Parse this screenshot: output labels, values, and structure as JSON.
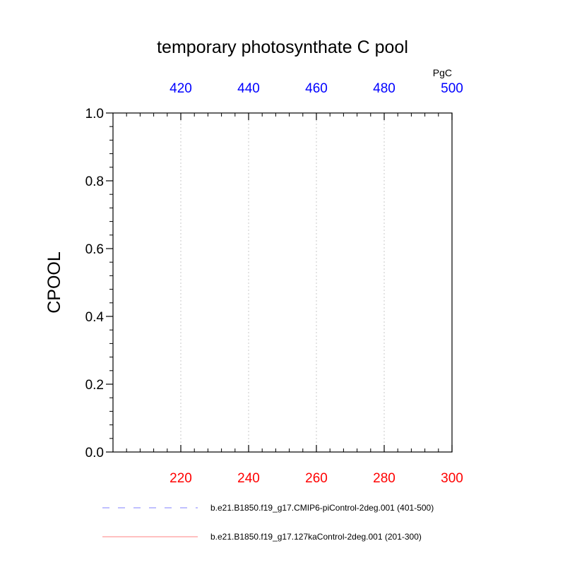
{
  "chart_data": {
    "type": "line",
    "title": "temporary photosynthate C pool",
    "ylabel": "CPOOL",
    "ylim": [
      0.0,
      1.0
    ],
    "y_ticks": [
      "0.0",
      "0.2",
      "0.4",
      "0.6",
      "0.8",
      "1.0"
    ],
    "y_minor_step": 0.04,
    "top_axis": {
      "unit": "PgC",
      "range": [
        400,
        500
      ],
      "ticks": [
        "420",
        "440",
        "460",
        "480",
        "500"
      ],
      "minor_step": 4,
      "color": "#0000ff"
    },
    "bottom_axis": {
      "range": [
        200,
        300
      ],
      "ticks": [
        "220",
        "240",
        "260",
        "280",
        "300"
      ],
      "minor_step": 4,
      "color": "#ff0000"
    },
    "grid": true,
    "grid_at": [
      220,
      240,
      260,
      280
    ],
    "legend_position": "bottom",
    "series": [
      {
        "name": "b.e21.B1850.f19_g17.CMIP6-piControl-2deg.001 (401-500)",
        "color": "#8080ff",
        "dash": "dashed",
        "axis": "top",
        "values": []
      },
      {
        "name": "b.e21.B1850.f19_g17.127kaControl-2deg.001 (201-300)",
        "color": "#ff8080",
        "dash": "solid",
        "axis": "bottom",
        "values": []
      }
    ]
  }
}
